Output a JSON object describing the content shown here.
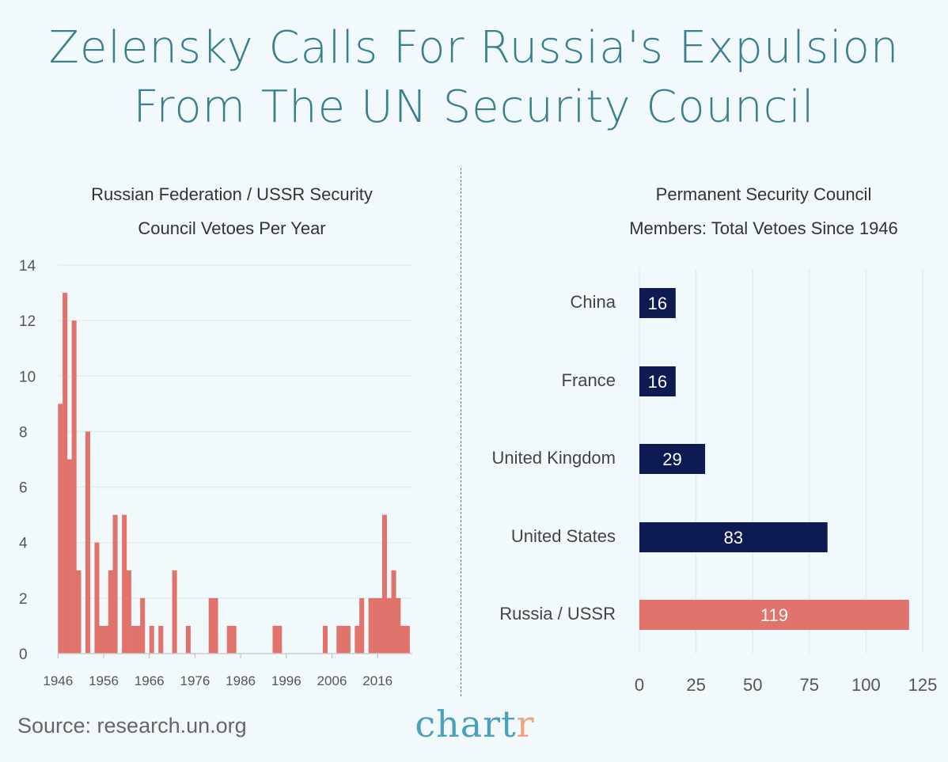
{
  "title": {
    "line1": "Zelensky Calls For Russia's Expulsion",
    "line2": "From The UN Security Council"
  },
  "colors": {
    "title": "#3b7f8e",
    "russia": "#e0736b",
    "other": "#0d1b52",
    "background": "#f2f9fc",
    "logo": "#4aa0b8",
    "logo_accent": "#f0a27a"
  },
  "source": "Source: research.un.org",
  "logo": {
    "main": "chart",
    "accent": "r"
  },
  "chart_data": [
    {
      "type": "bar",
      "title_line1": "Russian Federation / USSR Security",
      "title_line2": "Council Vetoes Per Year",
      "x_start": 1946,
      "values": [
        9,
        13,
        7,
        12,
        3,
        0,
        8,
        0,
        4,
        1,
        1,
        3,
        5,
        0,
        5,
        3,
        1,
        1,
        2,
        0,
        1,
        0,
        1,
        0,
        0,
        3,
        0,
        0,
        1,
        0,
        0,
        0,
        0,
        2,
        2,
        0,
        0,
        1,
        1,
        0,
        0,
        0,
        0,
        0,
        0,
        0,
        0,
        1,
        1,
        0,
        0,
        0,
        0,
        0,
        0,
        0,
        0,
        0,
        1,
        0,
        0,
        1,
        1,
        1,
        0,
        1,
        2,
        0,
        2,
        2,
        2,
        5,
        2,
        3,
        2,
        1,
        1
      ],
      "x_ticks": [
        "1946",
        "1956",
        "1966",
        "1976",
        "1986",
        "1996",
        "2006",
        "2016"
      ],
      "y_ticks": [
        "0",
        "2",
        "4",
        "6",
        "8",
        "10",
        "12",
        "14"
      ],
      "ylim": [
        0,
        14
      ],
      "grid": true,
      "color": "#e0736b"
    },
    {
      "type": "bar",
      "orientation": "horizontal",
      "title_line1": "Permanent Security Council",
      "title_line2": "Members: Total Vetoes Since 1946",
      "categories": [
        "China",
        "France",
        "United Kingdom",
        "United States",
        "Russia / USSR"
      ],
      "values": [
        16,
        16,
        29,
        83,
        119
      ],
      "labels": [
        "16",
        "16",
        "29",
        "83",
        "119"
      ],
      "x_ticks": [
        "0",
        "25",
        "50",
        "75",
        "100",
        "125"
      ],
      "xlim": [
        0,
        125
      ],
      "grid": true
    }
  ]
}
